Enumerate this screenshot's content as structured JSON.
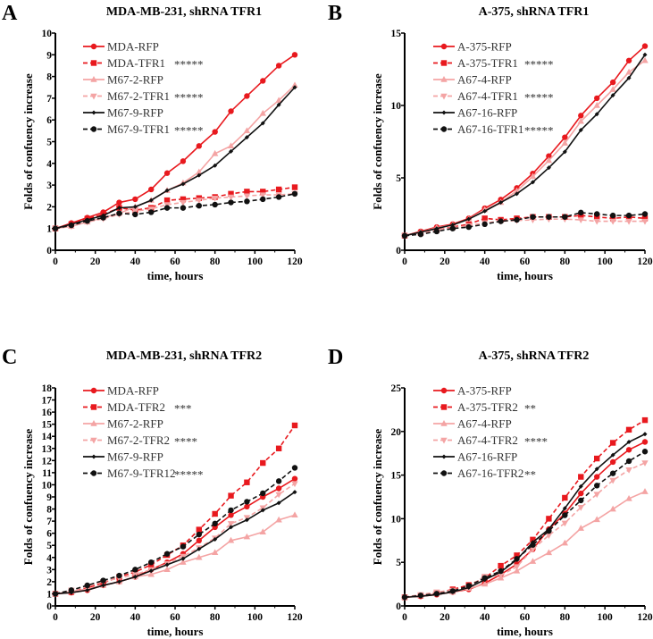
{
  "colors": {
    "red": "#e8191e",
    "pink": "#f4a4a4",
    "black": "#111111"
  },
  "chart_data": [
    {
      "type": "line",
      "panel_letter": "A",
      "title": "MDA-MB-231, shRNA TFR1",
      "xlabel": "time, hours",
      "ylabel": "Folds of confuency increase",
      "xlim": [
        0,
        120
      ],
      "ylim": [
        0,
        10
      ],
      "yticks": [
        0,
        1,
        2,
        3,
        4,
        5,
        6,
        7,
        8,
        9,
        10
      ],
      "xticks": [
        0,
        20,
        40,
        60,
        80,
        100,
        120
      ],
      "legend_position": "top-left",
      "grid": false,
      "x": [
        0,
        8,
        16,
        24,
        32,
        40,
        48,
        56,
        64,
        72,
        80,
        88,
        96,
        104,
        112,
        120
      ],
      "series": [
        {
          "name": "MDA-RFP",
          "significance": "",
          "color": "red",
          "dash": false,
          "marker": "circle",
          "values": [
            1,
            1.25,
            1.5,
            1.75,
            2.2,
            2.35,
            2.8,
            3.55,
            4.1,
            4.8,
            5.45,
            6.4,
            7.1,
            7.8,
            8.5,
            9.0
          ]
        },
        {
          "name": "MDA-TFR1",
          "significance": "*****",
          "color": "red",
          "dash": true,
          "marker": "square",
          "values": [
            1,
            1.2,
            1.45,
            1.65,
            1.95,
            1.85,
            1.95,
            2.3,
            2.35,
            2.4,
            2.45,
            2.6,
            2.7,
            2.7,
            2.8,
            2.9
          ]
        },
        {
          "name": "M67-2-RFP",
          "significance": "",
          "color": "pink",
          "dash": false,
          "marker": "triangle",
          "values": [
            1,
            1.1,
            1.3,
            1.5,
            1.7,
            2.0,
            2.3,
            2.75,
            3.1,
            3.6,
            4.45,
            4.8,
            5.5,
            6.3,
            6.9,
            7.6
          ]
        },
        {
          "name": "M67-2-TFR1",
          "significance": "*****",
          "color": "pink",
          "dash": true,
          "marker": "triangle-down",
          "values": [
            1,
            1.1,
            1.3,
            1.45,
            1.65,
            1.8,
            1.9,
            2.1,
            2.2,
            2.3,
            2.4,
            2.45,
            2.5,
            2.55,
            2.55,
            2.6
          ]
        },
        {
          "name": "M67-9-RFP",
          "significance": "",
          "color": "black",
          "dash": false,
          "marker": "diamond",
          "values": [
            1,
            1.2,
            1.4,
            1.6,
            1.95,
            2.0,
            2.3,
            2.75,
            3.05,
            3.45,
            3.9,
            4.55,
            5.2,
            5.85,
            6.7,
            7.5
          ]
        },
        {
          "name": "M67-9-TFR1",
          "significance": "*****",
          "color": "black",
          "dash": true,
          "marker": "circle",
          "values": [
            1,
            1.15,
            1.35,
            1.5,
            1.7,
            1.65,
            1.75,
            1.95,
            1.95,
            2.05,
            2.1,
            2.2,
            2.25,
            2.35,
            2.45,
            2.6
          ]
        }
      ]
    },
    {
      "type": "line",
      "panel_letter": "B",
      "title": "A-375, shRNA TFR1",
      "xlabel": "time, hours",
      "ylabel": "Folds of confuency increase",
      "xlim": [
        0,
        120
      ],
      "ylim": [
        0,
        15
      ],
      "yticks": [
        0,
        5,
        10,
        15
      ],
      "xticks": [
        0,
        20,
        40,
        60,
        80,
        100,
        120
      ],
      "legend_position": "top-left",
      "grid": false,
      "x": [
        0,
        8,
        16,
        24,
        32,
        40,
        48,
        56,
        64,
        72,
        80,
        88,
        96,
        104,
        112,
        120
      ],
      "series": [
        {
          "name": "A-375-RFP",
          "significance": "",
          "color": "red",
          "dash": false,
          "marker": "circle",
          "values": [
            1,
            1.3,
            1.6,
            1.8,
            2.2,
            2.9,
            3.5,
            4.3,
            5.3,
            6.5,
            7.8,
            9.3,
            10.5,
            11.6,
            13.1,
            14.1
          ]
        },
        {
          "name": "A-375-TFR1",
          "significance": "*****",
          "color": "red",
          "dash": true,
          "marker": "square",
          "values": [
            1,
            1.2,
            1.4,
            1.6,
            1.8,
            2.2,
            2.1,
            2.2,
            2.3,
            2.3,
            2.3,
            2.4,
            2.3,
            2.2,
            2.3,
            2.2
          ]
        },
        {
          "name": "A67-4-RFP",
          "significance": "",
          "color": "pink",
          "dash": false,
          "marker": "triangle",
          "values": [
            1,
            1.25,
            1.55,
            1.75,
            2.15,
            2.8,
            3.3,
            4.1,
            5.1,
            6.2,
            7.4,
            8.9,
            10.0,
            11.1,
            12.3,
            13.1
          ]
        },
        {
          "name": "A67-4-TFR1",
          "significance": "*****",
          "color": "pink",
          "dash": true,
          "marker": "triangle-down",
          "values": [
            1,
            1.15,
            1.4,
            1.55,
            1.7,
            1.9,
            2.0,
            2.05,
            2.1,
            2.15,
            2.15,
            2.1,
            2.0,
            2.0,
            2.0,
            2.0
          ]
        },
        {
          "name": "A67-16-RFP",
          "significance": "",
          "color": "black",
          "dash": false,
          "marker": "diamond",
          "values": [
            1,
            1.25,
            1.5,
            1.75,
            2.15,
            2.7,
            3.3,
            3.9,
            4.7,
            5.7,
            6.8,
            8.3,
            9.4,
            10.7,
            11.9,
            13.5
          ]
        },
        {
          "name": "A67-16-TFR1",
          "significance": "*****",
          "color": "black",
          "dash": true,
          "marker": "circle",
          "values": [
            1,
            1.1,
            1.3,
            1.5,
            1.6,
            1.8,
            2.0,
            2.1,
            2.3,
            2.3,
            2.3,
            2.6,
            2.5,
            2.4,
            2.4,
            2.5
          ]
        }
      ]
    },
    {
      "type": "line",
      "panel_letter": "C",
      "title": "MDA-MB-231, shRNA TFR2",
      "xlabel": "time, hours",
      "ylabel": "Folds of confuency increase",
      "xlim": [
        0,
        120
      ],
      "ylim": [
        0,
        18
      ],
      "yticks": [
        0,
        1,
        2,
        3,
        4,
        5,
        6,
        7,
        8,
        9,
        10,
        11,
        12,
        13,
        14,
        15,
        16,
        17,
        18
      ],
      "xticks": [
        0,
        20,
        40,
        60,
        80,
        100,
        120
      ],
      "legend_position": "top-left",
      "grid": false,
      "x": [
        0,
        8,
        16,
        24,
        32,
        40,
        48,
        56,
        64,
        72,
        80,
        88,
        96,
        104,
        112,
        120
      ],
      "series": [
        {
          "name": "MDA-RFP",
          "significance": "",
          "color": "red",
          "dash": false,
          "marker": "circle",
          "values": [
            1,
            1.1,
            1.3,
            1.7,
            2.0,
            2.4,
            3.0,
            3.6,
            4.3,
            5.4,
            6.5,
            7.5,
            8.2,
            9.0,
            9.7,
            10.5
          ]
        },
        {
          "name": "MDA-TFR2",
          "significance": "***",
          "color": "red",
          "dash": true,
          "marker": "square",
          "values": [
            1,
            1.15,
            1.5,
            1.9,
            2.4,
            2.8,
            3.4,
            4.2,
            5.0,
            6.3,
            7.6,
            9.1,
            10.2,
            11.8,
            13.0,
            14.9
          ]
        },
        {
          "name": "M67-2-RFP",
          "significance": "",
          "color": "pink",
          "dash": false,
          "marker": "triangle",
          "values": [
            1,
            1.2,
            1.4,
            1.7,
            2.0,
            2.4,
            2.6,
            3.0,
            3.6,
            4.0,
            4.4,
            5.4,
            5.7,
            6.1,
            7.1,
            7.5
          ]
        },
        {
          "name": "M67-2-TFR2",
          "significance": "****",
          "color": "pink",
          "dash": true,
          "marker": "triangle-down",
          "values": [
            1,
            1.3,
            1.6,
            2.0,
            2.3,
            2.6,
            3.0,
            3.5,
            4.1,
            4.8,
            5.6,
            6.8,
            7.3,
            8.1,
            9.2,
            10.1
          ]
        },
        {
          "name": "M67-9-RFP",
          "significance": "",
          "color": "black",
          "dash": false,
          "marker": "diamond",
          "values": [
            1,
            1.1,
            1.3,
            1.7,
            2.0,
            2.4,
            2.9,
            3.4,
            3.9,
            4.7,
            5.5,
            6.5,
            7.1,
            7.9,
            8.5,
            9.4
          ]
        },
        {
          "name": "M67-9-TFR12",
          "significance": "*****",
          "color": "black",
          "dash": true,
          "marker": "circle",
          "values": [
            1,
            1.3,
            1.7,
            2.1,
            2.5,
            3.0,
            3.6,
            4.3,
            4.9,
            5.9,
            6.8,
            7.9,
            8.6,
            9.3,
            10.3,
            11.4
          ]
        }
      ]
    },
    {
      "type": "line",
      "panel_letter": "D",
      "title": "A-375, shRNA TFR2",
      "xlabel": "time, hours",
      "ylabel": "Folds of confuency increase",
      "xlim": [
        0,
        120
      ],
      "ylim": [
        0,
        25
      ],
      "yticks": [
        0,
        5,
        10,
        15,
        20,
        25
      ],
      "xticks": [
        0,
        20,
        40,
        60,
        80,
        100,
        120
      ],
      "legend_position": "top-left",
      "grid": false,
      "x": [
        0,
        8,
        16,
        24,
        32,
        40,
        48,
        56,
        64,
        72,
        80,
        88,
        96,
        104,
        112,
        120
      ],
      "series": [
        {
          "name": "A-375-RFP",
          "significance": "",
          "color": "red",
          "dash": false,
          "marker": "circle",
          "values": [
            1,
            1.1,
            1.3,
            1.6,
            1.9,
            2.6,
            3.6,
            4.8,
            6.5,
            8.8,
            10.6,
            12.9,
            14.8,
            16.5,
            17.9,
            18.8
          ]
        },
        {
          "name": "A-375-TFR2",
          "significance": "**",
          "color": "red",
          "dash": true,
          "marker": "square",
          "values": [
            1,
            1.2,
            1.5,
            1.9,
            2.4,
            3.2,
            4.6,
            5.8,
            7.6,
            10.0,
            12.4,
            14.8,
            16.9,
            18.7,
            20.2,
            21.3
          ]
        },
        {
          "name": "A67-4-RFP",
          "significance": "",
          "color": "pink",
          "dash": false,
          "marker": "triangle",
          "values": [
            1,
            1.2,
            1.4,
            1.6,
            2.0,
            2.5,
            3.2,
            4.0,
            5.1,
            6.1,
            7.2,
            8.9,
            9.9,
            11.1,
            12.3,
            13.1
          ]
        },
        {
          "name": "A67-4-TFR2",
          "significance": "****",
          "color": "pink",
          "dash": true,
          "marker": "triangle-down",
          "values": [
            1,
            1.3,
            1.6,
            1.8,
            2.2,
            3.4,
            3.5,
            4.5,
            6.5,
            8.1,
            9.5,
            11.3,
            12.8,
            14.4,
            15.6,
            16.4
          ]
        },
        {
          "name": "A67-16-RFP",
          "significance": "",
          "color": "black",
          "dash": false,
          "marker": "diamond",
          "values": [
            1,
            1.1,
            1.3,
            1.6,
            2.1,
            3.0,
            3.9,
            5.3,
            7.3,
            8.8,
            11.2,
            13.7,
            15.7,
            17.3,
            18.8,
            19.7
          ]
        },
        {
          "name": "A67-16-TFR2",
          "significance": "**",
          "color": "black",
          "dash": true,
          "marker": "circle",
          "values": [
            1,
            1.2,
            1.4,
            1.7,
            2.3,
            3.2,
            4.0,
            5.4,
            7.0,
            8.6,
            10.4,
            12.1,
            13.8,
            15.2,
            16.6,
            17.7
          ]
        }
      ]
    }
  ]
}
